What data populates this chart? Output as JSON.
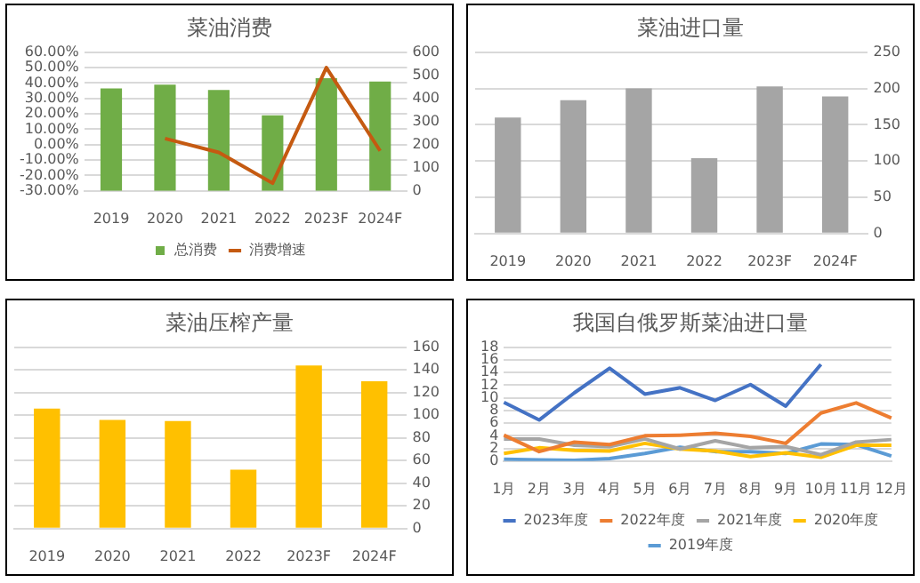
{
  "chart_data": [
    {
      "type": "bar",
      "title": "菜油消费",
      "categories": [
        "2019",
        "2020",
        "2021",
        "2022",
        "2023F",
        "2024F"
      ],
      "series": [
        {
          "name": "总消费",
          "type": "bar",
          "color": "#70ad47",
          "axis": "y2",
          "values": [
            443,
            460,
            437,
            327,
            488,
            473
          ]
        },
        {
          "name": "消费增速",
          "type": "line",
          "color": "#c55a11",
          "axis": "y",
          "values": [
            null,
            4,
            -5,
            -25,
            50,
            -4
          ]
        }
      ],
      "ylim": [
        -30,
        60
      ],
      "yticks": [
        {
          "value": -30,
          "label": "-30.00%"
        },
        {
          "value": -20,
          "label": "-20.00%"
        },
        {
          "value": -10,
          "label": "-10.00%"
        },
        {
          "value": 0,
          "label": "0.00%"
        },
        {
          "value": 10,
          "label": "10.00%"
        },
        {
          "value": 20,
          "label": "20.00%"
        },
        {
          "value": 30,
          "label": "30.00%"
        },
        {
          "value": 40,
          "label": "40.00%"
        },
        {
          "value": 50,
          "label": "50.00%"
        },
        {
          "value": 60,
          "label": "60.00%"
        }
      ],
      "y2lim": [
        0,
        600
      ],
      "y2ticks": [
        0,
        100,
        200,
        300,
        400,
        500,
        600
      ],
      "grid": "y",
      "legend": "bottom",
      "marker": "none"
    },
    {
      "type": "bar",
      "title": "菜油进口量",
      "categories": [
        "2019",
        "2020",
        "2021",
        "2022",
        "2023F",
        "2024F"
      ],
      "values": [
        160,
        184,
        200,
        104,
        203,
        189
      ],
      "color": "#a5a5a5",
      "ylim": [
        0,
        250
      ],
      "yticks": [
        0,
        50,
        100,
        150,
        200,
        250
      ],
      "grid": "y"
    },
    {
      "type": "bar",
      "title": "菜油压榨产量",
      "categories": [
        "2019",
        "2020",
        "2021",
        "2022",
        "2023F",
        "2024F"
      ],
      "values": [
        106,
        96,
        95,
        52,
        144,
        130
      ],
      "color": "#ffc000",
      "ylim": [
        0,
        160
      ],
      "yticks": [
        0,
        20,
        40,
        60,
        80,
        100,
        120,
        140,
        160
      ],
      "grid": "y"
    },
    {
      "type": "line",
      "title": "我国自俄罗斯菜油进口量",
      "categories": [
        "1月",
        "2月",
        "3月",
        "4月",
        "5月",
        "6月",
        "7月",
        "8月",
        "9月",
        "10月",
        "11月",
        "12月"
      ],
      "series": [
        {
          "name": "2023年度",
          "color": "#4472c4",
          "values": [
            9.3,
            6.5,
            10.8,
            14.7,
            10.6,
            11.6,
            9.6,
            12.1,
            8.7,
            15.3,
            null,
            null
          ]
        },
        {
          "name": "2022年度",
          "color": "#ed7d31",
          "values": [
            4.1,
            1.5,
            3.0,
            2.6,
            4.0,
            4.1,
            4.4,
            3.9,
            2.8,
            7.6,
            9.2,
            6.8
          ]
        },
        {
          "name": "2021年度",
          "color": "#a5a5a5",
          "values": [
            3.5,
            3.5,
            2.5,
            2.3,
            3.5,
            1.9,
            3.2,
            2.1,
            2.3,
            1.0,
            3.0,
            3.4
          ]
        },
        {
          "name": "2020年度",
          "color": "#ffc000",
          "values": [
            1.2,
            2.1,
            1.7,
            1.6,
            2.8,
            1.9,
            1.6,
            0.7,
            1.3,
            0.6,
            2.5,
            2.5
          ]
        },
        {
          "name": "2019年度",
          "color": "#5b9bd5",
          "values": [
            0.3,
            0.2,
            0.1,
            0.4,
            1.2,
            2.2,
            1.5,
            1.5,
            1.2,
            2.7,
            2.6,
            0.8
          ]
        }
      ],
      "ylim": [
        0,
        18
      ],
      "yticks": [
        0,
        2,
        4,
        6,
        8,
        10,
        12,
        14,
        16,
        18
      ],
      "grid": "y",
      "legend": "bottom",
      "marker": "none"
    }
  ]
}
